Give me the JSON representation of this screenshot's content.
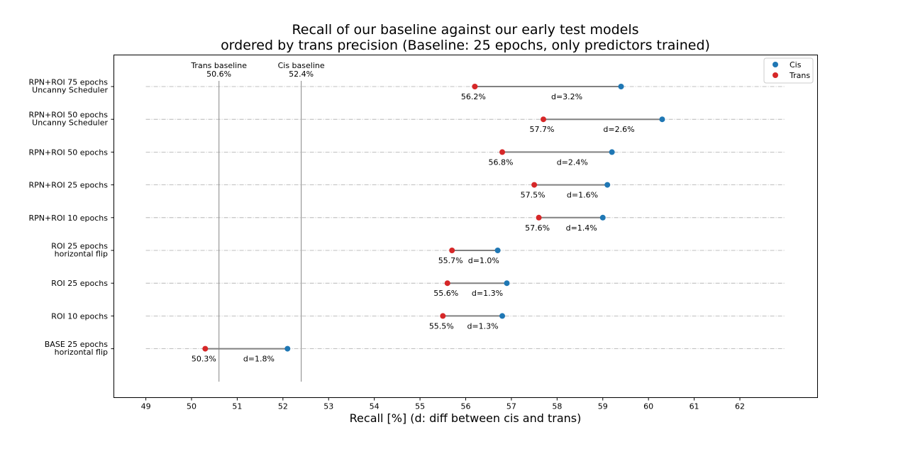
{
  "chart_data": {
    "type": "dumbbell",
    "title_line1": "Recall of our baseline against our early test models",
    "title_line2": "ordered by trans precision (Baseline: 25 epochs, only predictors trained)",
    "xlabel": "Recall [%]   (d: diff between cis and trans)",
    "xlim": [
      48.3,
      63.7
    ],
    "xticks": [
      49,
      50,
      51,
      52,
      53,
      54,
      55,
      56,
      57,
      58,
      59,
      60,
      61,
      62
    ],
    "grid": "horizontal dash-dot per category",
    "legend_position": "top-right",
    "legend": [
      {
        "label": "Cis",
        "color": "#1f77b4"
      },
      {
        "label": "Trans",
        "color": "#d62728"
      }
    ],
    "reference_lines": [
      {
        "name": "Trans baseline",
        "value_label": "50.6%",
        "x": 50.6
      },
      {
        "name": "Cis baseline",
        "value_label": "52.4%",
        "x": 52.4
      }
    ],
    "categories": [
      {
        "label": [
          "RPN+ROI 75 epochs",
          "Uncanny Scheduler"
        ],
        "trans": 56.2,
        "cis": 59.4,
        "trans_label": "56.2%",
        "diff_label": "d=3.2%"
      },
      {
        "label": [
          "RPN+ROI 50 epochs",
          "Uncanny Scheduler"
        ],
        "trans": 57.7,
        "cis": 60.3,
        "trans_label": "57.7%",
        "diff_label": "d=2.6%"
      },
      {
        "label": [
          "RPN+ROI 50 epochs"
        ],
        "trans": 56.8,
        "cis": 59.2,
        "trans_label": "56.8%",
        "diff_label": "d=2.4%"
      },
      {
        "label": [
          "RPN+ROI 25 epochs"
        ],
        "trans": 57.5,
        "cis": 59.1,
        "trans_label": "57.5%",
        "diff_label": "d=1.6%"
      },
      {
        "label": [
          "RPN+ROI 10 epochs"
        ],
        "trans": 57.6,
        "cis": 59.0,
        "trans_label": "57.6%",
        "diff_label": "d=1.4%"
      },
      {
        "label": [
          "ROI 25 epochs",
          "horizontal flip"
        ],
        "trans": 55.7,
        "cis": 56.7,
        "trans_label": "55.7%",
        "diff_label": "d=1.0%"
      },
      {
        "label": [
          "ROI 25 epochs"
        ],
        "trans": 55.6,
        "cis": 56.9,
        "trans_label": "55.6%",
        "diff_label": "d=1.3%"
      },
      {
        "label": [
          "ROI 10 epochs"
        ],
        "trans": 55.5,
        "cis": 56.8,
        "trans_label": "55.5%",
        "diff_label": "d=1.3%"
      },
      {
        "label": [
          "BASE 25 epochs",
          "horizontal flip"
        ],
        "trans": 50.3,
        "cis": 52.1,
        "trans_label": "50.3%",
        "diff_label": "d=1.8%"
      }
    ]
  }
}
